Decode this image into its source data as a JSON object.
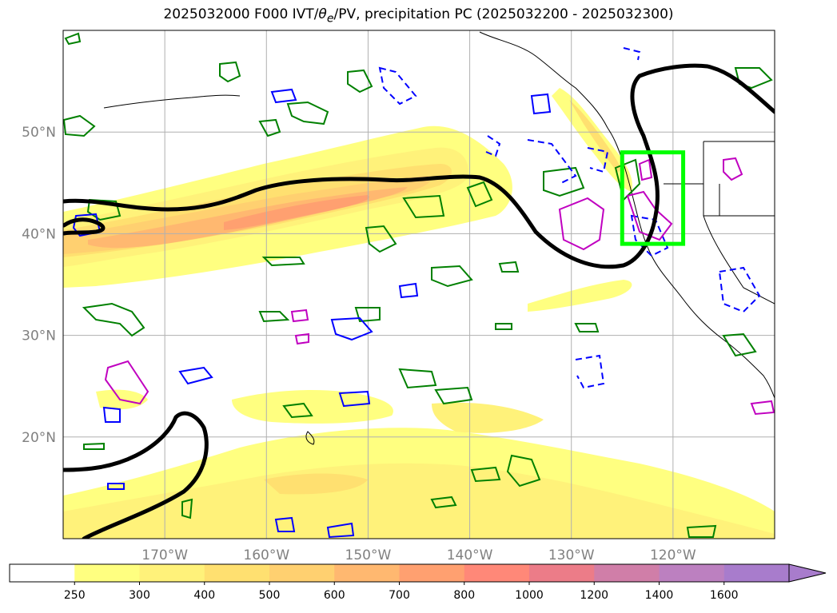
{
  "title": {
    "prefix": "2025032000 F000 IVT/",
    "theta_symbol": "θ",
    "theta_sub": "e",
    "suffix": "/PV, precipitation PC (2025032200 - 2025032300)"
  },
  "map": {
    "lon_range": [
      -180,
      -110
    ],
    "lat_range": [
      10,
      60
    ],
    "lon_ticks": [
      {
        "value": -170,
        "label": "170°W"
      },
      {
        "value": -160,
        "label": "160°W"
      },
      {
        "value": -150,
        "label": "150°W"
      },
      {
        "value": -140,
        "label": "140°W"
      },
      {
        "value": -130,
        "label": "130°W"
      },
      {
        "value": -120,
        "label": "120°W"
      }
    ],
    "lat_ticks": [
      {
        "value": 50,
        "label": "50°N"
      },
      {
        "value": 40,
        "label": "40°N"
      },
      {
        "value": 30,
        "label": "30°N"
      },
      {
        "value": 20,
        "label": "20°N"
      }
    ],
    "highlight_box": {
      "lon_min": -125,
      "lon_max": -119,
      "lat_min": 39,
      "lat_max": 48,
      "color": "#00ff00"
    },
    "colors": {
      "grid": "#b0b0b0",
      "theta_contour": "#000000",
      "pv_pos": "#008000",
      "pv_neg": "#0000ff",
      "precip": "#c000c0"
    }
  },
  "colorbar": {
    "levels": [
      "250",
      "300",
      "400",
      "500",
      "600",
      "700",
      "800",
      "1000",
      "1200",
      "1400",
      "1600"
    ],
    "colors": [
      "#ffffff",
      "#ffff80",
      "#fff27a",
      "#ffe070",
      "#ffd070",
      "#ffb870",
      "#ffa070",
      "#ff8878",
      "#ec7c88",
      "#d07ea8",
      "#bc80c0",
      "#a87ccc"
    ],
    "extend": "max"
  }
}
